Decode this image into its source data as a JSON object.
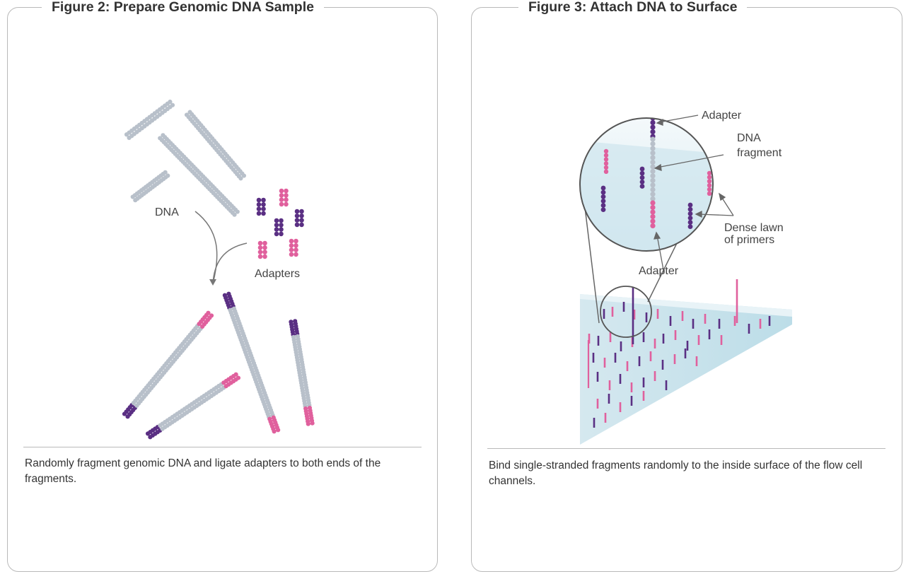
{
  "colors": {
    "border": "#b9b9b9",
    "dna_gray": "#b8c0ca",
    "adapter_purple": "#5a2f83",
    "adapter_pink": "#e0609d",
    "surface_blue": "#cfe6ee",
    "arrow": "#666666"
  },
  "figure2": {
    "title": "Figure 2: Prepare Genomic DNA Sample",
    "labels": {
      "dna": "DNA",
      "adapters": "Adapters"
    },
    "caption": "Randomly fragment genomic DNA and ligate adapters to both ends of the fragments."
  },
  "figure3": {
    "title": "Figure 3: Attach DNA to Surface",
    "labels": {
      "adapter_top": "Adapter",
      "dna_fragment_line1": "DNA",
      "dna_fragment_line2": "fragment",
      "dense_lawn_line1": "Dense lawn",
      "dense_lawn_line2": "of primers",
      "adapter_bottom": "Adapter"
    },
    "caption": "Bind single-stranded fragments randomly to the inside surface of the flow cell channels."
  }
}
